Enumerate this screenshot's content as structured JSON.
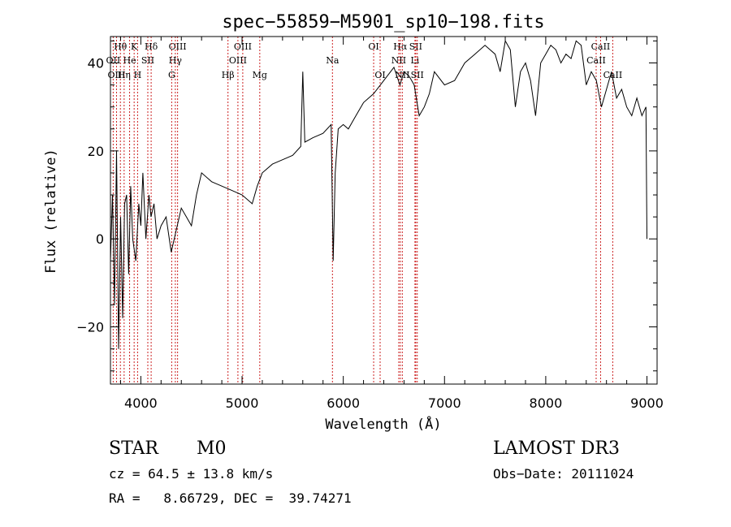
{
  "chart_data": {
    "type": "line",
    "title": "spec−55859−M5901_sp10−198.fits",
    "xlabel": "Wavelength (Å)",
    "ylabel": "Flux (relative)",
    "xlim": [
      3700,
      9100
    ],
    "ylim": [
      -33,
      46
    ],
    "x_ticks": [
      4000,
      5000,
      6000,
      7000,
      8000,
      9000
    ],
    "y_ticks": [
      -20,
      0,
      20,
      40
    ],
    "x_tick_labels": [
      "4000",
      "5000",
      "6000",
      "7000",
      "8000",
      "9000"
    ],
    "y_tick_labels": [
      "−20",
      "0",
      "20",
      "40"
    ],
    "grid": false,
    "legend": "none",
    "line_color": "#000000",
    "marker_color": "#cc2222",
    "series": [
      {
        "x": [
          3700,
          3720,
          3740,
          3760,
          3780,
          3800,
          3820,
          3840,
          3860,
          3880,
          3900,
          3920,
          3950,
          3980,
          4000,
          4020,
          4050,
          4080,
          4100,
          4130,
          4160,
          4200,
          4250,
          4300,
          4350,
          4400,
          4450,
          4500,
          4550,
          4600,
          4700,
          4800,
          4900,
          5000,
          5100,
          5150,
          5200,
          5300,
          5400,
          5500,
          5580,
          5600,
          5620,
          5700,
          5800,
          5880,
          5900,
          5920,
          5950,
          6000,
          6050,
          6100,
          6150,
          6200,
          6300,
          6400,
          6500,
          6560,
          6600,
          6650,
          6700,
          6750,
          6800,
          6850,
          6900,
          7000,
          7100,
          7200,
          7300,
          7400,
          7500,
          7550,
          7600,
          7650,
          7700,
          7750,
          7800,
          7850,
          7900,
          7950,
          8000,
          8050,
          8100,
          8150,
          8200,
          8250,
          8300,
          8350,
          8400,
          8450,
          8500,
          8550,
          8600,
          8650,
          8700,
          8750,
          8800,
          8850,
          8900,
          8950,
          8990,
          9000
        ],
        "y": [
          -5,
          10,
          -15,
          20,
          -25,
          5,
          -18,
          8,
          10,
          -8,
          12,
          0,
          -5,
          8,
          3,
          15,
          0,
          10,
          5,
          8,
          0,
          3,
          5,
          -3,
          2,
          7,
          5,
          3,
          10,
          15,
          13,
          12,
          11,
          10,
          8,
          12,
          15,
          17,
          18,
          19,
          21,
          38,
          22,
          23,
          24,
          26,
          -5,
          15,
          25,
          26,
          25,
          27,
          29,
          31,
          33,
          36,
          39,
          35,
          38,
          37,
          35,
          28,
          30,
          33,
          38,
          35,
          36,
          40,
          42,
          44,
          42,
          38,
          45,
          43,
          30,
          38,
          40,
          36,
          28,
          40,
          42,
          44,
          43,
          40,
          42,
          41,
          45,
          44,
          35,
          38,
          36,
          30,
          34,
          38,
          32,
          34,
          30,
          28,
          32,
          28,
          30,
          0
        ]
      }
    ],
    "line_markers": [
      {
        "label": "Hθ",
        "wavelength": 3798,
        "row": 0
      },
      {
        "label": "OII",
        "wavelength": 3727,
        "row": 1
      },
      {
        "label": "OIII",
        "wavelength": 3760,
        "row": 2
      },
      {
        "label": "K",
        "wavelength": 3934,
        "row": 0
      },
      {
        "label": "He",
        "wavelength": 3889,
        "row": 1
      },
      {
        "label": "Hη",
        "wavelength": 3835,
        "row": 2
      },
      {
        "label": "SII",
        "wavelength": 4069,
        "row": 1
      },
      {
        "label": "H",
        "wavelength": 3968,
        "row": 2
      },
      {
        "label": "Hδ",
        "wavelength": 4102,
        "row": 0
      },
      {
        "label": "OIII",
        "wavelength": 4363,
        "row": 0
      },
      {
        "label": "Hγ",
        "wavelength": 4341,
        "row": 1
      },
      {
        "label": "G",
        "wavelength": 4305,
        "row": 2
      },
      {
        "label": "Hβ",
        "wavelength": 4861,
        "row": 2
      },
      {
        "label": "OIII",
        "wavelength": 5007,
        "row": 0
      },
      {
        "label": "OIII",
        "wavelength": 4959,
        "row": 1
      },
      {
        "label": "Mg",
        "wavelength": 5175,
        "row": 2
      },
      {
        "label": "Na",
        "wavelength": 5893,
        "row": 1
      },
      {
        "label": "OI",
        "wavelength": 6300,
        "row": 0
      },
      {
        "label": "OI",
        "wavelength": 6364,
        "row": 2
      },
      {
        "label": "Hα",
        "wavelength": 6563,
        "row": 0
      },
      {
        "label": "SII",
        "wavelength": 6716,
        "row": 0
      },
      {
        "label": "NII",
        "wavelength": 6548,
        "row": 1
      },
      {
        "label": "Li",
        "wavelength": 6708,
        "row": 1
      },
      {
        "label": "NII",
        "wavelength": 6583,
        "row": 2
      },
      {
        "label": "SII",
        "wavelength": 6731,
        "row": 2
      },
      {
        "label": "CaII",
        "wavelength": 8542,
        "row": 0
      },
      {
        "label": "CaII",
        "wavelength": 8498,
        "row": 1
      },
      {
        "label": "CaII",
        "wavelength": 8662,
        "row": 2
      }
    ]
  },
  "info": {
    "object_class": "STAR",
    "subclass": "M0",
    "survey": "LAMOST DR3",
    "velocity": "cz = 64.5 ± 13.8 km/s",
    "obs_date": "Obs−Date: 20111024",
    "coords": "RA =   8.66729, DEC =  39.74271"
  }
}
